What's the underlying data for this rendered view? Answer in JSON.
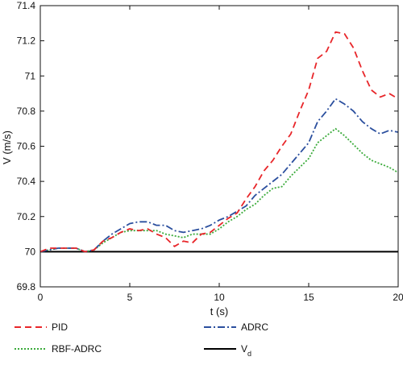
{
  "chart_data": {
    "type": "line",
    "xlabel": "t (s)",
    "ylabel": "V (m/s)",
    "xlim": [
      0,
      20
    ],
    "ylim": [
      69.8,
      71.4
    ],
    "xticks": [
      0,
      5,
      10,
      15,
      20
    ],
    "yticks": [
      69.8,
      70,
      70.2,
      70.4,
      70.6,
      70.8,
      71,
      71.2,
      71.4
    ],
    "x_tick_labels": [
      "0",
      "5",
      "10",
      "15",
      "20"
    ],
    "y_tick_labels": [
      "69.8",
      "70",
      "70.2",
      "70.4",
      "70.6",
      "70.8",
      "71",
      "71.2",
      "71.4"
    ],
    "grid": false,
    "legend_position": "below",
    "x": [
      0,
      0.5,
      1,
      1.5,
      2,
      2.5,
      3,
      3.5,
      4,
      4.5,
      5,
      5.5,
      6,
      6.5,
      7,
      7.5,
      8,
      8.5,
      9,
      9.5,
      10,
      10.5,
      11,
      11.5,
      12,
      12.5,
      13,
      13.5,
      14,
      14.5,
      15,
      15.5,
      16,
      16.5,
      17,
      17.5,
      18,
      18.5,
      19,
      19.5,
      20
    ],
    "series": [
      {
        "name": "PID",
        "color": "#e8262a",
        "dash": "8,5",
        "values": [
          70.0,
          70.02,
          70.02,
          70.02,
          70.02,
          70.0,
          70.01,
          70.06,
          70.08,
          70.11,
          70.13,
          70.12,
          70.13,
          70.1,
          70.08,
          70.03,
          70.06,
          70.05,
          70.1,
          70.11,
          70.15,
          70.19,
          70.22,
          70.3,
          70.37,
          70.46,
          70.52,
          70.6,
          70.67,
          70.8,
          70.92,
          71.1,
          71.14,
          71.25,
          71.24,
          71.16,
          71.03,
          70.92,
          70.88,
          70.9,
          70.87
        ]
      },
      {
        "name": "RBF-ADRC",
        "color": "#3bab3b",
        "dash": "2,2",
        "values": [
          70.0,
          70.01,
          70.02,
          70.02,
          70.02,
          70.0,
          70.01,
          70.05,
          70.08,
          70.11,
          70.12,
          70.12,
          70.12,
          70.12,
          70.1,
          70.09,
          70.08,
          70.1,
          70.1,
          70.1,
          70.13,
          70.17,
          70.2,
          70.24,
          70.27,
          70.32,
          70.36,
          70.37,
          70.43,
          70.48,
          70.53,
          70.62,
          70.66,
          70.7,
          70.66,
          70.61,
          70.56,
          70.52,
          70.5,
          70.48,
          70.45
        ]
      },
      {
        "name": "ADRC",
        "color": "#2b4f9e",
        "dash": "9,3,2,3",
        "values": [
          70.0,
          70.01,
          70.02,
          70.02,
          70.02,
          70.0,
          70.01,
          70.06,
          70.1,
          70.13,
          70.16,
          70.17,
          70.17,
          70.15,
          70.15,
          70.12,
          70.11,
          70.12,
          70.13,
          70.15,
          70.18,
          70.2,
          70.23,
          70.26,
          70.32,
          70.36,
          70.4,
          70.44,
          70.5,
          70.56,
          70.62,
          70.74,
          70.8,
          70.87,
          70.84,
          70.8,
          70.74,
          70.7,
          70.67,
          70.69,
          70.68
        ]
      },
      {
        "name": "V",
        "subscript": "d",
        "color": "#000000",
        "dash": "",
        "values": [
          70.0,
          70.0,
          70.0,
          70.0,
          70.0,
          70.0,
          70.0,
          70.0,
          70.0,
          70.0,
          70.0,
          70.0,
          70.0,
          70.0,
          70.0,
          70.0,
          70.0,
          70.0,
          70.0,
          70.0,
          70.0,
          70.0,
          70.0,
          70.0,
          70.0,
          70.0,
          70.0,
          70.0,
          70.0,
          70.0,
          70.0,
          70.0,
          70.0,
          70.0,
          70.0,
          70.0,
          70.0,
          70.0,
          70.0,
          70.0,
          70.0
        ]
      }
    ]
  }
}
